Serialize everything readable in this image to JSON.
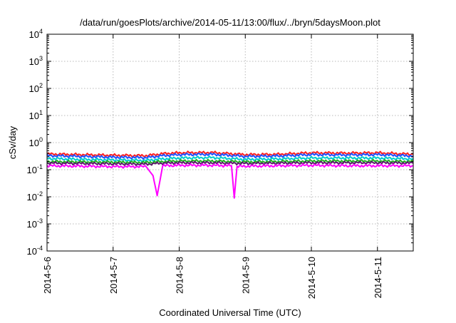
{
  "chart_data": {
    "type": "line",
    "title": "/data/run/goesPlots/archive/2014-05-11/13:00/flux/../bryn/5daysMoon.plot",
    "xlabel": "Coordinated Universal Time (UTC)",
    "ylabel": "cSv/day",
    "yscale": "log",
    "ylim": [
      0.0001,
      10000
    ],
    "xlim": [
      "2014-05-06 00:00",
      "2014-05-11 13:00"
    ],
    "x_ticks": [
      "2014-5-6",
      "2014-5-7",
      "2014-5-8",
      "2014-5-9",
      "2014-5-10",
      "2014-5-11"
    ],
    "y_ticks": [
      {
        "base": "10",
        "exp": "-4"
      },
      {
        "base": "10",
        "exp": "-3"
      },
      {
        "base": "10",
        "exp": "-2"
      },
      {
        "base": "10",
        "exp": "-1"
      },
      {
        "base": "10",
        "exp": "0"
      },
      {
        "base": "10",
        "exp": "1"
      },
      {
        "base": "10",
        "exp": "2"
      },
      {
        "base": "10",
        "exp": "3"
      },
      {
        "base": "10",
        "exp": "4"
      }
    ],
    "grid": true,
    "series": [
      {
        "color": "#ff2020",
        "points": [
          [
            "2014-05-06 00:00",
            0.38
          ],
          [
            "2014-05-06 12:00",
            0.36
          ],
          [
            "2014-05-07 00:00",
            0.34
          ],
          [
            "2014-05-07 12:00",
            0.33
          ],
          [
            "2014-05-07 18:00",
            0.39
          ],
          [
            "2014-05-08 00:00",
            0.42
          ],
          [
            "2014-05-08 12:00",
            0.43
          ],
          [
            "2014-05-09 00:00",
            0.36
          ],
          [
            "2014-05-09 12:00",
            0.37
          ],
          [
            "2014-05-10 00:00",
            0.42
          ],
          [
            "2014-05-10 12:00",
            0.41
          ],
          [
            "2014-05-11 00:00",
            0.42
          ],
          [
            "2014-05-11 13:00",
            0.37
          ]
        ]
      },
      {
        "color": "#2050ff",
        "points": [
          [
            "2014-05-06 00:00",
            0.33
          ],
          [
            "2014-05-06 12:00",
            0.31
          ],
          [
            "2014-05-07 00:00",
            0.29
          ],
          [
            "2014-05-07 12:00",
            0.28
          ],
          [
            "2014-05-07 18:00",
            0.33
          ],
          [
            "2014-05-08 00:00",
            0.36
          ],
          [
            "2014-05-08 12:00",
            0.37
          ],
          [
            "2014-05-09 00:00",
            0.31
          ],
          [
            "2014-05-09 12:00",
            0.32
          ],
          [
            "2014-05-10 00:00",
            0.36
          ],
          [
            "2014-05-10 12:00",
            0.35
          ],
          [
            "2014-05-11 00:00",
            0.36
          ],
          [
            "2014-05-11 13:00",
            0.32
          ]
        ]
      },
      {
        "color": "#00cccc",
        "points": [
          [
            "2014-05-06 00:00",
            0.26
          ],
          [
            "2014-05-06 12:00",
            0.24
          ],
          [
            "2014-05-07 00:00",
            0.23
          ],
          [
            "2014-05-07 12:00",
            0.22
          ],
          [
            "2014-05-07 18:00",
            0.25
          ],
          [
            "2014-05-08 00:00",
            0.27
          ],
          [
            "2014-05-08 12:00",
            0.28
          ],
          [
            "2014-05-09 00:00",
            0.24
          ],
          [
            "2014-05-09 12:00",
            0.25
          ],
          [
            "2014-05-10 00:00",
            0.27
          ],
          [
            "2014-05-10 12:00",
            0.27
          ],
          [
            "2014-05-11 00:00",
            0.27
          ],
          [
            "2014-05-11 13:00",
            0.25
          ]
        ]
      },
      {
        "color": "#20b020",
        "points": [
          [
            "2014-05-06 00:00",
            0.2
          ],
          [
            "2014-05-06 12:00",
            0.195
          ],
          [
            "2014-05-07 00:00",
            0.19
          ],
          [
            "2014-05-07 12:00",
            0.185
          ],
          [
            "2014-05-07 18:00",
            0.2
          ],
          [
            "2014-05-08 00:00",
            0.21
          ],
          [
            "2014-05-08 12:00",
            0.21
          ],
          [
            "2014-05-09 00:00",
            0.195
          ],
          [
            "2014-05-09 12:00",
            0.2
          ],
          [
            "2014-05-10 00:00",
            0.21
          ],
          [
            "2014-05-10 12:00",
            0.21
          ],
          [
            "2014-05-11 00:00",
            0.21
          ],
          [
            "2014-05-11 13:00",
            0.2
          ]
        ]
      },
      {
        "color": "#5a1a6a",
        "points": [
          [
            "2014-05-06 00:00",
            0.175
          ],
          [
            "2014-05-06 12:00",
            0.17
          ],
          [
            "2014-05-07 00:00",
            0.165
          ],
          [
            "2014-05-07 12:00",
            0.16
          ],
          [
            "2014-05-07 18:00",
            0.175
          ],
          [
            "2014-05-08 00:00",
            0.18
          ],
          [
            "2014-05-08 12:00",
            0.18
          ],
          [
            "2014-05-09 00:00",
            0.17
          ],
          [
            "2014-05-09 12:00",
            0.175
          ],
          [
            "2014-05-10 00:00",
            0.18
          ],
          [
            "2014-05-10 12:00",
            0.18
          ],
          [
            "2014-05-11 00:00",
            0.18
          ],
          [
            "2014-05-11 13:00",
            0.175
          ]
        ]
      },
      {
        "color": "#ff00ff",
        "points": [
          [
            "2014-05-06 00:00",
            0.14
          ],
          [
            "2014-05-06 12:00",
            0.135
          ],
          [
            "2014-05-07 00:00",
            0.13
          ],
          [
            "2014-05-07 12:00",
            0.13
          ],
          [
            "2014-05-07 14:30",
            0.06
          ],
          [
            "2014-05-07 16:00",
            0.011
          ],
          [
            "2014-05-07 18:00",
            0.14
          ],
          [
            "2014-05-08 00:00",
            0.145
          ],
          [
            "2014-05-08 12:00",
            0.145
          ],
          [
            "2014-05-08 19:00",
            0.14
          ],
          [
            "2014-05-08 20:00",
            0.009
          ],
          [
            "2014-05-08 21:00",
            0.13
          ],
          [
            "2014-05-09 00:00",
            0.135
          ],
          [
            "2014-05-09 12:00",
            0.14
          ],
          [
            "2014-05-10 00:00",
            0.145
          ],
          [
            "2014-05-10 12:00",
            0.14
          ],
          [
            "2014-05-11 00:00",
            0.14
          ],
          [
            "2014-05-11 13:00",
            0.14
          ]
        ]
      }
    ]
  }
}
